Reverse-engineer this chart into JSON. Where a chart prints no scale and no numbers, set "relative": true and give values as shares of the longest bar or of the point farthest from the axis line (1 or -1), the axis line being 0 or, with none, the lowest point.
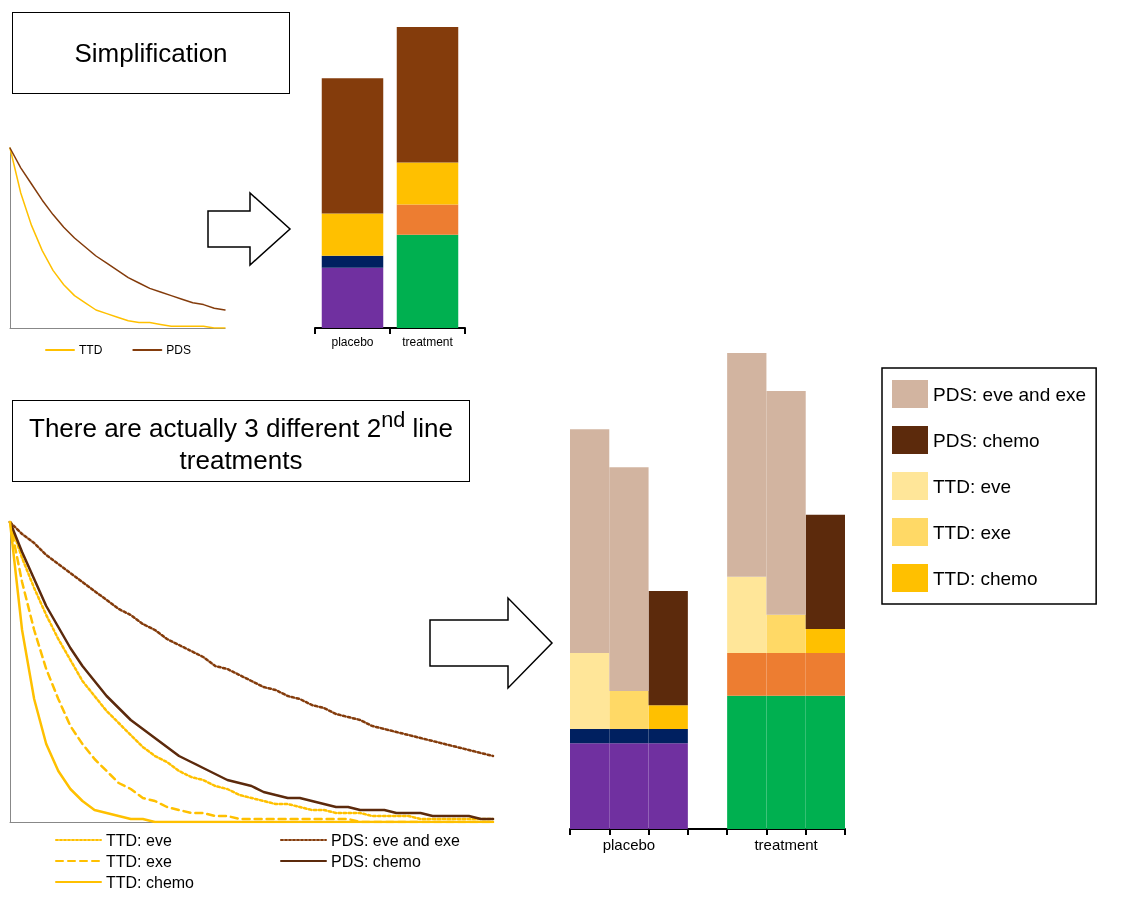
{
  "chart_data": [
    {
      "type": "line",
      "title": "Simplification",
      "relative": true,
      "marker": "none",
      "legend": "bottom",
      "tick_labels": false,
      "categories": [
        null,
        null,
        null,
        null,
        null,
        null,
        null,
        null,
        null,
        null,
        null,
        null,
        null,
        null,
        null,
        null,
        null,
        null,
        null,
        null,
        null
      ],
      "series": [
        {
          "name": "TTD",
          "color": "#ffc000",
          "values": [
            1,
            0.75,
            0.57,
            0.43,
            0.32,
            0.24,
            0.18,
            0.14,
            0.1,
            0.08,
            0.06,
            0.04,
            0.03,
            0.03,
            0.02,
            0.01,
            0.01,
            0.01,
            0.01,
            0,
            0
          ]
        },
        {
          "name": "PDS",
          "color": "#843c0c",
          "values": [
            1,
            0.89,
            0.8,
            0.71,
            0.63,
            0.56,
            0.5,
            0.45,
            0.4,
            0.36,
            0.32,
            0.28,
            0.25,
            0.22,
            0.2,
            0.18,
            0.16,
            0.14,
            0.13,
            0.11,
            0.1
          ]
        }
      ]
    },
    {
      "type": "bar",
      "stacked": true,
      "relative": true,
      "tick_labels": "x",
      "categories": [
        "placebo",
        "treatment"
      ],
      "series": [
        {
          "color": "#7030a0",
          "values": [
            0.2,
            null
          ]
        },
        {
          "color": "#00b050",
          "values": [
            null,
            0.31
          ]
        },
        {
          "color": "#002060",
          "values": [
            0.04,
            null
          ]
        },
        {
          "color": "#ed7d31",
          "values": [
            null,
            0.1
          ]
        },
        {
          "color": "#ffc000",
          "values": [
            0.14,
            0.14
          ]
        },
        {
          "color": "#843c0c",
          "values": [
            0.45,
            0.45
          ]
        }
      ]
    },
    {
      "type": "line",
      "title": "There are actually 3 different 2$^{nd}$ line treatments",
      "relative": true,
      "marker": "none",
      "legend": "bottom",
      "tick_labels": false,
      "categories": [
        null,
        null,
        null,
        null,
        null,
        null,
        null,
        null,
        null,
        null,
        null,
        null,
        null,
        null,
        null,
        null,
        null,
        null,
        null,
        null,
        null,
        null,
        null,
        null,
        null,
        null,
        null,
        null,
        null,
        null,
        null,
        null,
        null,
        null,
        null,
        null,
        null,
        null,
        null,
        null,
        null
      ],
      "series": [
        {
          "name": "TTD: eve",
          "color": "#ffc000",
          "line_style": "dotted",
          "values": [
            1,
            0.88,
            0.78,
            0.69,
            0.61,
            0.54,
            0.47,
            0.42,
            0.37,
            0.33,
            0.29,
            0.25,
            0.22,
            0.2,
            0.17,
            0.15,
            0.14,
            0.12,
            0.11,
            0.09,
            0.08,
            0.07,
            0.06,
            0.06,
            0.05,
            0.04,
            0.04,
            0.03,
            0.03,
            0.03,
            0.02,
            0.02,
            0.02,
            0.02,
            0.01,
            0.01,
            0.01,
            0.01,
            0.01,
            0.01,
            0.01
          ]
        },
        {
          "name": "PDS: eve and exe",
          "color": "#843c0c",
          "line_style": "dotted",
          "values": [
            1,
            0.96,
            0.93,
            0.89,
            0.86,
            0.83,
            0.8,
            0.77,
            0.74,
            0.71,
            0.69,
            0.66,
            0.64,
            0.61,
            0.59,
            0.57,
            0.55,
            0.52,
            0.51,
            0.49,
            0.47,
            0.45,
            0.44,
            0.42,
            0.41,
            0.39,
            0.38,
            0.36,
            0.35,
            0.34,
            0.32,
            0.31,
            0.3,
            0.29,
            0.28,
            0.27,
            0.26,
            0.25,
            0.24,
            0.23,
            0.22
          ]
        },
        {
          "name": "TTD: exe",
          "color": "#ffc000",
          "line_style": "dashed",
          "values": [
            1,
            0.8,
            0.64,
            0.51,
            0.41,
            0.32,
            0.26,
            0.21,
            0.17,
            0.13,
            0.11,
            0.08,
            0.07,
            0.05,
            0.04,
            0.03,
            0.03,
            0.02,
            0.02,
            0.01,
            0.01,
            0.01,
            0.01,
            0.01,
            0.01,
            0.01,
            0.01,
            0.01,
            0.01,
            0,
            0,
            0,
            0,
            0,
            0,
            0,
            0,
            0,
            0,
            0,
            0
          ]
        },
        {
          "name": "PDS: chemo",
          "color": "#5c2a0c",
          "line_style": "solid",
          "values": [
            1,
            0.9,
            0.81,
            0.72,
            0.65,
            0.58,
            0.52,
            0.47,
            0.42,
            0.38,
            0.34,
            0.31,
            0.28,
            0.25,
            0.22,
            0.2,
            0.18,
            0.16,
            0.14,
            0.13,
            0.12,
            0.1,
            0.09,
            0.08,
            0.08,
            0.07,
            0.06,
            0.05,
            0.05,
            0.04,
            0.04,
            0.04,
            0.03,
            0.03,
            0.03,
            0.02,
            0.02,
            0.02,
            0.02,
            0.01,
            0.01
          ]
        },
        {
          "name": "TTD: chemo",
          "color": "#ffc000",
          "line_style": "solid",
          "values": [
            1,
            0.64,
            0.41,
            0.26,
            0.17,
            0.11,
            0.07,
            0.04,
            0.03,
            0.02,
            0.01,
            0.01,
            0,
            0,
            0,
            0,
            0,
            0,
            0,
            0,
            0,
            0,
            0,
            0,
            0,
            0,
            0,
            0,
            0,
            0,
            0,
            0,
            0,
            0,
            0,
            0,
            0,
            0,
            0,
            0,
            0
          ]
        }
      ]
    },
    {
      "type": "bar",
      "stacked": true,
      "relative": true,
      "tick_labels": "x",
      "legend": "right",
      "categories": [
        null,
        "placebo",
        null,
        null,
        null,
        "treatment",
        null
      ],
      "series": [
        {
          "color": "#7030a0",
          "values": [
            0.18,
            0.18,
            0.18,
            null,
            null,
            null,
            null
          ]
        },
        {
          "color": "#00b050",
          "values": [
            null,
            null,
            null,
            null,
            0.28,
            0.28,
            0.28
          ]
        },
        {
          "color": "#002060",
          "values": [
            0.03,
            0.03,
            0.03,
            null,
            null,
            null,
            null
          ]
        },
        {
          "color": "#ed7d31",
          "values": [
            null,
            null,
            null,
            null,
            0.09,
            0.09,
            0.09
          ]
        },
        {
          "name": "TTD: chemo",
          "color": "#ffc000",
          "values": [
            null,
            null,
            0.05,
            null,
            null,
            null,
            0.05
          ]
        },
        {
          "name": "TTD: exe",
          "color": "#ffd966",
          "values": [
            null,
            0.08,
            null,
            null,
            null,
            0.08,
            null
          ]
        },
        {
          "name": "TTD: eve",
          "color": "#ffe699",
          "values": [
            0.16,
            null,
            null,
            null,
            0.16,
            null,
            null
          ]
        },
        {
          "name": "PDS: chemo",
          "color": "#5c2a0c",
          "values": [
            null,
            null,
            0.24,
            null,
            null,
            null,
            0.24
          ]
        },
        {
          "name": "PDS: eve and exe",
          "color": "#d2b4a0",
          "values": [
            0.47,
            0.47,
            null,
            null,
            0.47,
            0.47,
            null
          ]
        }
      ]
    }
  ]
}
